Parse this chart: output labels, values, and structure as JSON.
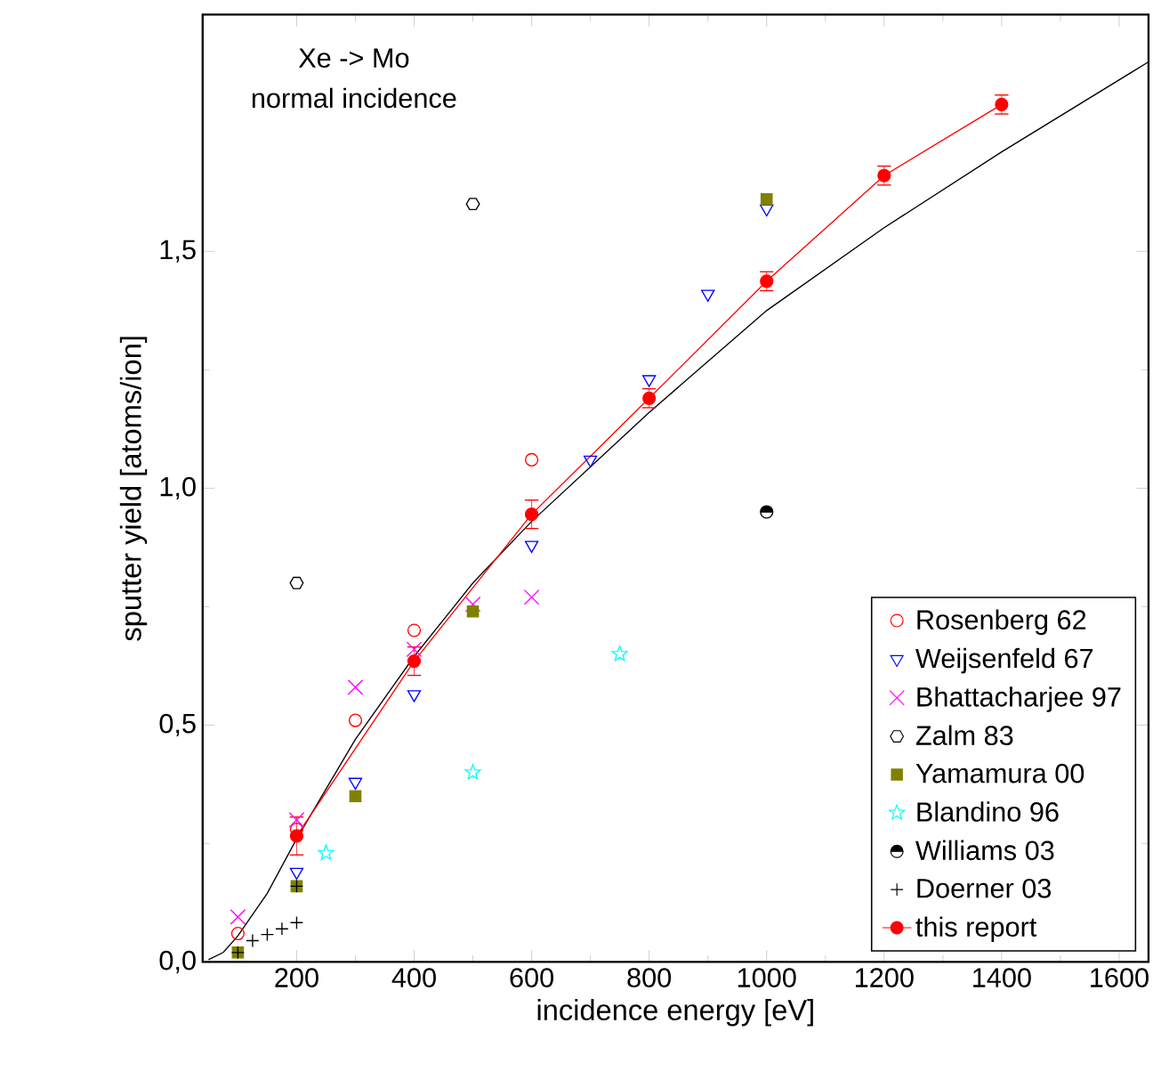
{
  "chart_data": {
    "type": "scatter",
    "xlabel": "incidence energy [eV]",
    "ylabel": "sputter yield [atoms/ion]",
    "annotations": [
      "Xe -> Mo",
      "normal incidence"
    ],
    "xlim": [
      40,
      1650
    ],
    "ylim": [
      0,
      2.0
    ],
    "xticks": [
      200,
      400,
      600,
      800,
      1000,
      1200,
      1400,
      1600
    ],
    "yticks": [
      {
        "value": 0,
        "label": "0,0"
      },
      {
        "value": 0.5,
        "label": "0,5"
      },
      {
        "value": 1.0,
        "label": "1,0"
      },
      {
        "value": 1.5,
        "label": "1,5"
      }
    ],
    "legend": "bottom right",
    "series": [
      {
        "type": "line",
        "color": "#000000",
        "marker": "none",
        "x": [
          50,
          75,
          100,
          150,
          200,
          300,
          400,
          500,
          600,
          800,
          1000,
          1200,
          1400,
          1650
        ],
        "values": [
          0.005,
          0.02,
          0.055,
          0.145,
          0.26,
          0.47,
          0.645,
          0.8,
          0.93,
          1.16,
          1.375,
          1.55,
          1.71,
          1.9
        ]
      },
      {
        "name": "Rosenberg 62",
        "color": "#ff0000",
        "marker": "open circle",
        "x": [
          100,
          200,
          300,
          400,
          600
        ],
        "values": [
          0.06,
          0.28,
          0.51,
          0.7,
          1.06
        ]
      },
      {
        "name": "Weijsenfeld 67",
        "color": "#0000ff",
        "marker": "triangle",
        "x": [
          200,
          300,
          400,
          600,
          700,
          800,
          900,
          1000
        ],
        "values": [
          0.19,
          0.38,
          0.565,
          0.88,
          1.06,
          1.23,
          1.41,
          1.59
        ]
      },
      {
        "name": "Bhattacharjee 97",
        "color": "#ff00ff",
        "marker": "cross",
        "x": [
          100,
          200,
          300,
          400,
          500,
          600
        ],
        "values": [
          0.095,
          0.3,
          0.58,
          0.66,
          0.755,
          0.77
        ]
      },
      {
        "name": "Zalm 83",
        "color": "#000000",
        "x": [
          200,
          500
        ],
        "values": [
          0.8,
          1.6
        ]
      },
      {
        "name": "Yamamura 00",
        "color": "#808000",
        "marker": "square",
        "x": [
          100,
          200,
          300,
          500,
          1000
        ],
        "values": [
          0.02,
          0.16,
          0.35,
          0.74,
          1.61
        ]
      },
      {
        "name": "Blandino 96",
        "color": "#00ffff",
        "marker": "star",
        "x": [
          250,
          500,
          750
        ],
        "values": [
          0.23,
          0.4,
          0.65
        ]
      },
      {
        "name": "Williams 03",
        "color": "#000000",
        "marker": "half circle",
        "x": [
          1000
        ],
        "values": [
          0.95
        ]
      },
      {
        "name": "Doerner 03",
        "color": "#000000",
        "marker": "plus",
        "x": [
          100,
          125,
          150,
          175,
          200,
          200
        ],
        "values": [
          0.02,
          0.045,
          0.058,
          0.07,
          0.083,
          0.16
        ]
      },
      {
        "name": "this report",
        "type": "line",
        "color": "#ff0000",
        "marker": "circle",
        "x": [
          200,
          400,
          600,
          800,
          1000,
          1200,
          1400
        ],
        "values": [
          0.266,
          0.635,
          0.945,
          1.19,
          1.437,
          1.66,
          1.81
        ],
        "errors": [
          0.04,
          0.03,
          0.03,
          0.02,
          0.02,
          0.02,
          0.02
        ]
      }
    ]
  }
}
